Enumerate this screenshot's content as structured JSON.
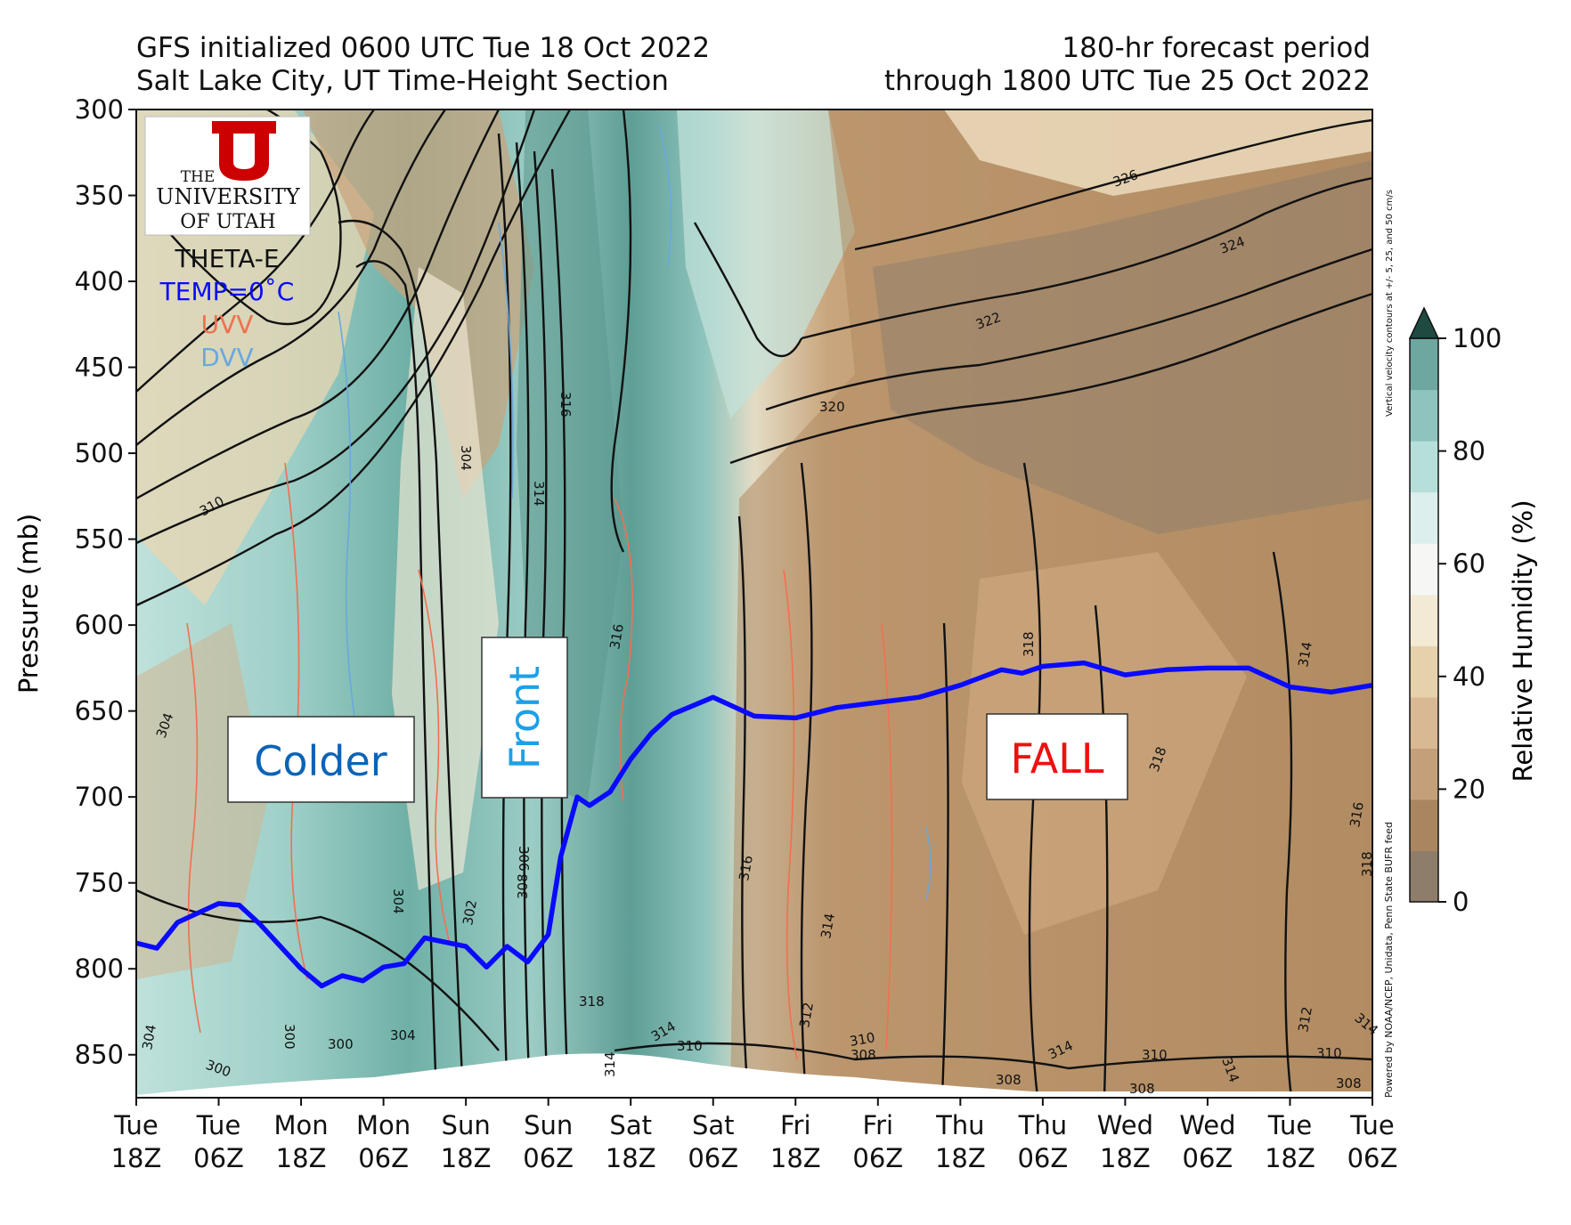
{
  "header": {
    "left_line1": "GFS initialized 0600 UTC Tue 18 Oct 2022",
    "left_line2": "Salt Lake City, UT Time-Height Section",
    "right_line1": "180-hr forecast period",
    "right_line2": "through 1800 UTC Tue 25 Oct 2022"
  },
  "logo": {
    "line1": "THE",
    "line2": "UNIVERSITY",
    "line3": "OF UTAH",
    "letter": "U",
    "color": "#cc0000"
  },
  "field_legend": [
    {
      "label": "THETA-E",
      "color": "#111111"
    },
    {
      "label": "TEMP=0˚C",
      "color": "#0a0aff"
    },
    {
      "label": "UVV",
      "color": "#f07050"
    },
    {
      "label": "DVV",
      "color": "#6aa8dc"
    }
  ],
  "side_notes": {
    "vertical_velocity": "Vertical velocity contours at +/- 5, 25, and 50 cm/s",
    "credit": "Powered by NOAA/NCEP, Unidata, Penn State BUFR feed"
  },
  "annotations": {
    "colder": {
      "text": "Colder",
      "color": "#0c64b4"
    },
    "front": {
      "text": "Front",
      "color": "#1ea0e6"
    },
    "fall": {
      "text": "FALL",
      "color": "#ee1111"
    }
  },
  "colorbar": {
    "label": "Relative Humidity (%)",
    "ticks": [
      "0",
      "20",
      "40",
      "60",
      "80",
      "100"
    ],
    "colors": [
      "#8f7d6b",
      "#a9865f",
      "#c4a07a",
      "#d8b994",
      "#e6d1ad",
      "#f3ead6",
      "#f6f6f4",
      "#dcefec",
      "#b7dfd9",
      "#8ec4bd",
      "#6da79f"
    ],
    "extend_color": "#1f4a42"
  },
  "chart_data": {
    "type": "time-height cross section",
    "ylabel": "Pressure (mb)",
    "ylim": [
      875,
      300
    ],
    "y_ticks": [
      300,
      350,
      400,
      450,
      500,
      550,
      600,
      650,
      700,
      750,
      800,
      850
    ],
    "x_ticks": [
      {
        "day": "Tue",
        "hour": "18Z"
      },
      {
        "day": "Tue",
        "hour": "06Z"
      },
      {
        "day": "Mon",
        "hour": "18Z"
      },
      {
        "day": "Mon",
        "hour": "06Z"
      },
      {
        "day": "Sun",
        "hour": "18Z"
      },
      {
        "day": "Sun",
        "hour": "06Z"
      },
      {
        "day": "Sat",
        "hour": "18Z"
      },
      {
        "day": "Sat",
        "hour": "06Z"
      },
      {
        "day": "Fri",
        "hour": "18Z"
      },
      {
        "day": "Fri",
        "hour": "06Z"
      },
      {
        "day": "Thu",
        "hour": "18Z"
      },
      {
        "day": "Thu",
        "hour": "06Z"
      },
      {
        "day": "Wed",
        "hour": "18Z"
      },
      {
        "day": "Wed",
        "hour": "06Z"
      },
      {
        "day": "Tue",
        "hour": "18Z"
      },
      {
        "day": "Tue",
        "hour": "06Z"
      }
    ],
    "freezing_level": {
      "name": "TEMP=0˚C",
      "color": "#0a0aff",
      "x": [
        0,
        0.25,
        0.5,
        1,
        1.25,
        1.5,
        2,
        2.25,
        2.5,
        2.75,
        3,
        3.25,
        3.5,
        4,
        4.25,
        4.5,
        4.75,
        5,
        5.15,
        5.35,
        5.5,
        5.75,
        6,
        6.25,
        6.5,
        7,
        7.5,
        8,
        8.5,
        9,
        9.5,
        10,
        10.5,
        10.75,
        11,
        11.5,
        12,
        12.5,
        13,
        13.5,
        14,
        14.5,
        15
      ],
      "y": [
        785,
        788,
        773,
        762,
        763,
        774,
        800,
        810,
        804,
        807,
        799,
        797,
        782,
        787,
        799,
        787,
        796,
        780,
        735,
        700,
        705,
        697,
        678,
        663,
        652,
        642,
        653,
        654,
        648,
        645,
        642,
        635,
        626,
        628,
        624,
        622,
        629,
        626,
        625,
        625,
        636,
        639,
        635
      ]
    },
    "theta_e_contour_labels": [
      "300",
      "302",
      "304",
      "306",
      "308",
      "310",
      "312",
      "314",
      "316",
      "318",
      "320",
      "322",
      "324",
      "326"
    ],
    "reference_pressures": [
      650,
      700,
      750,
      800,
      850
    ]
  }
}
